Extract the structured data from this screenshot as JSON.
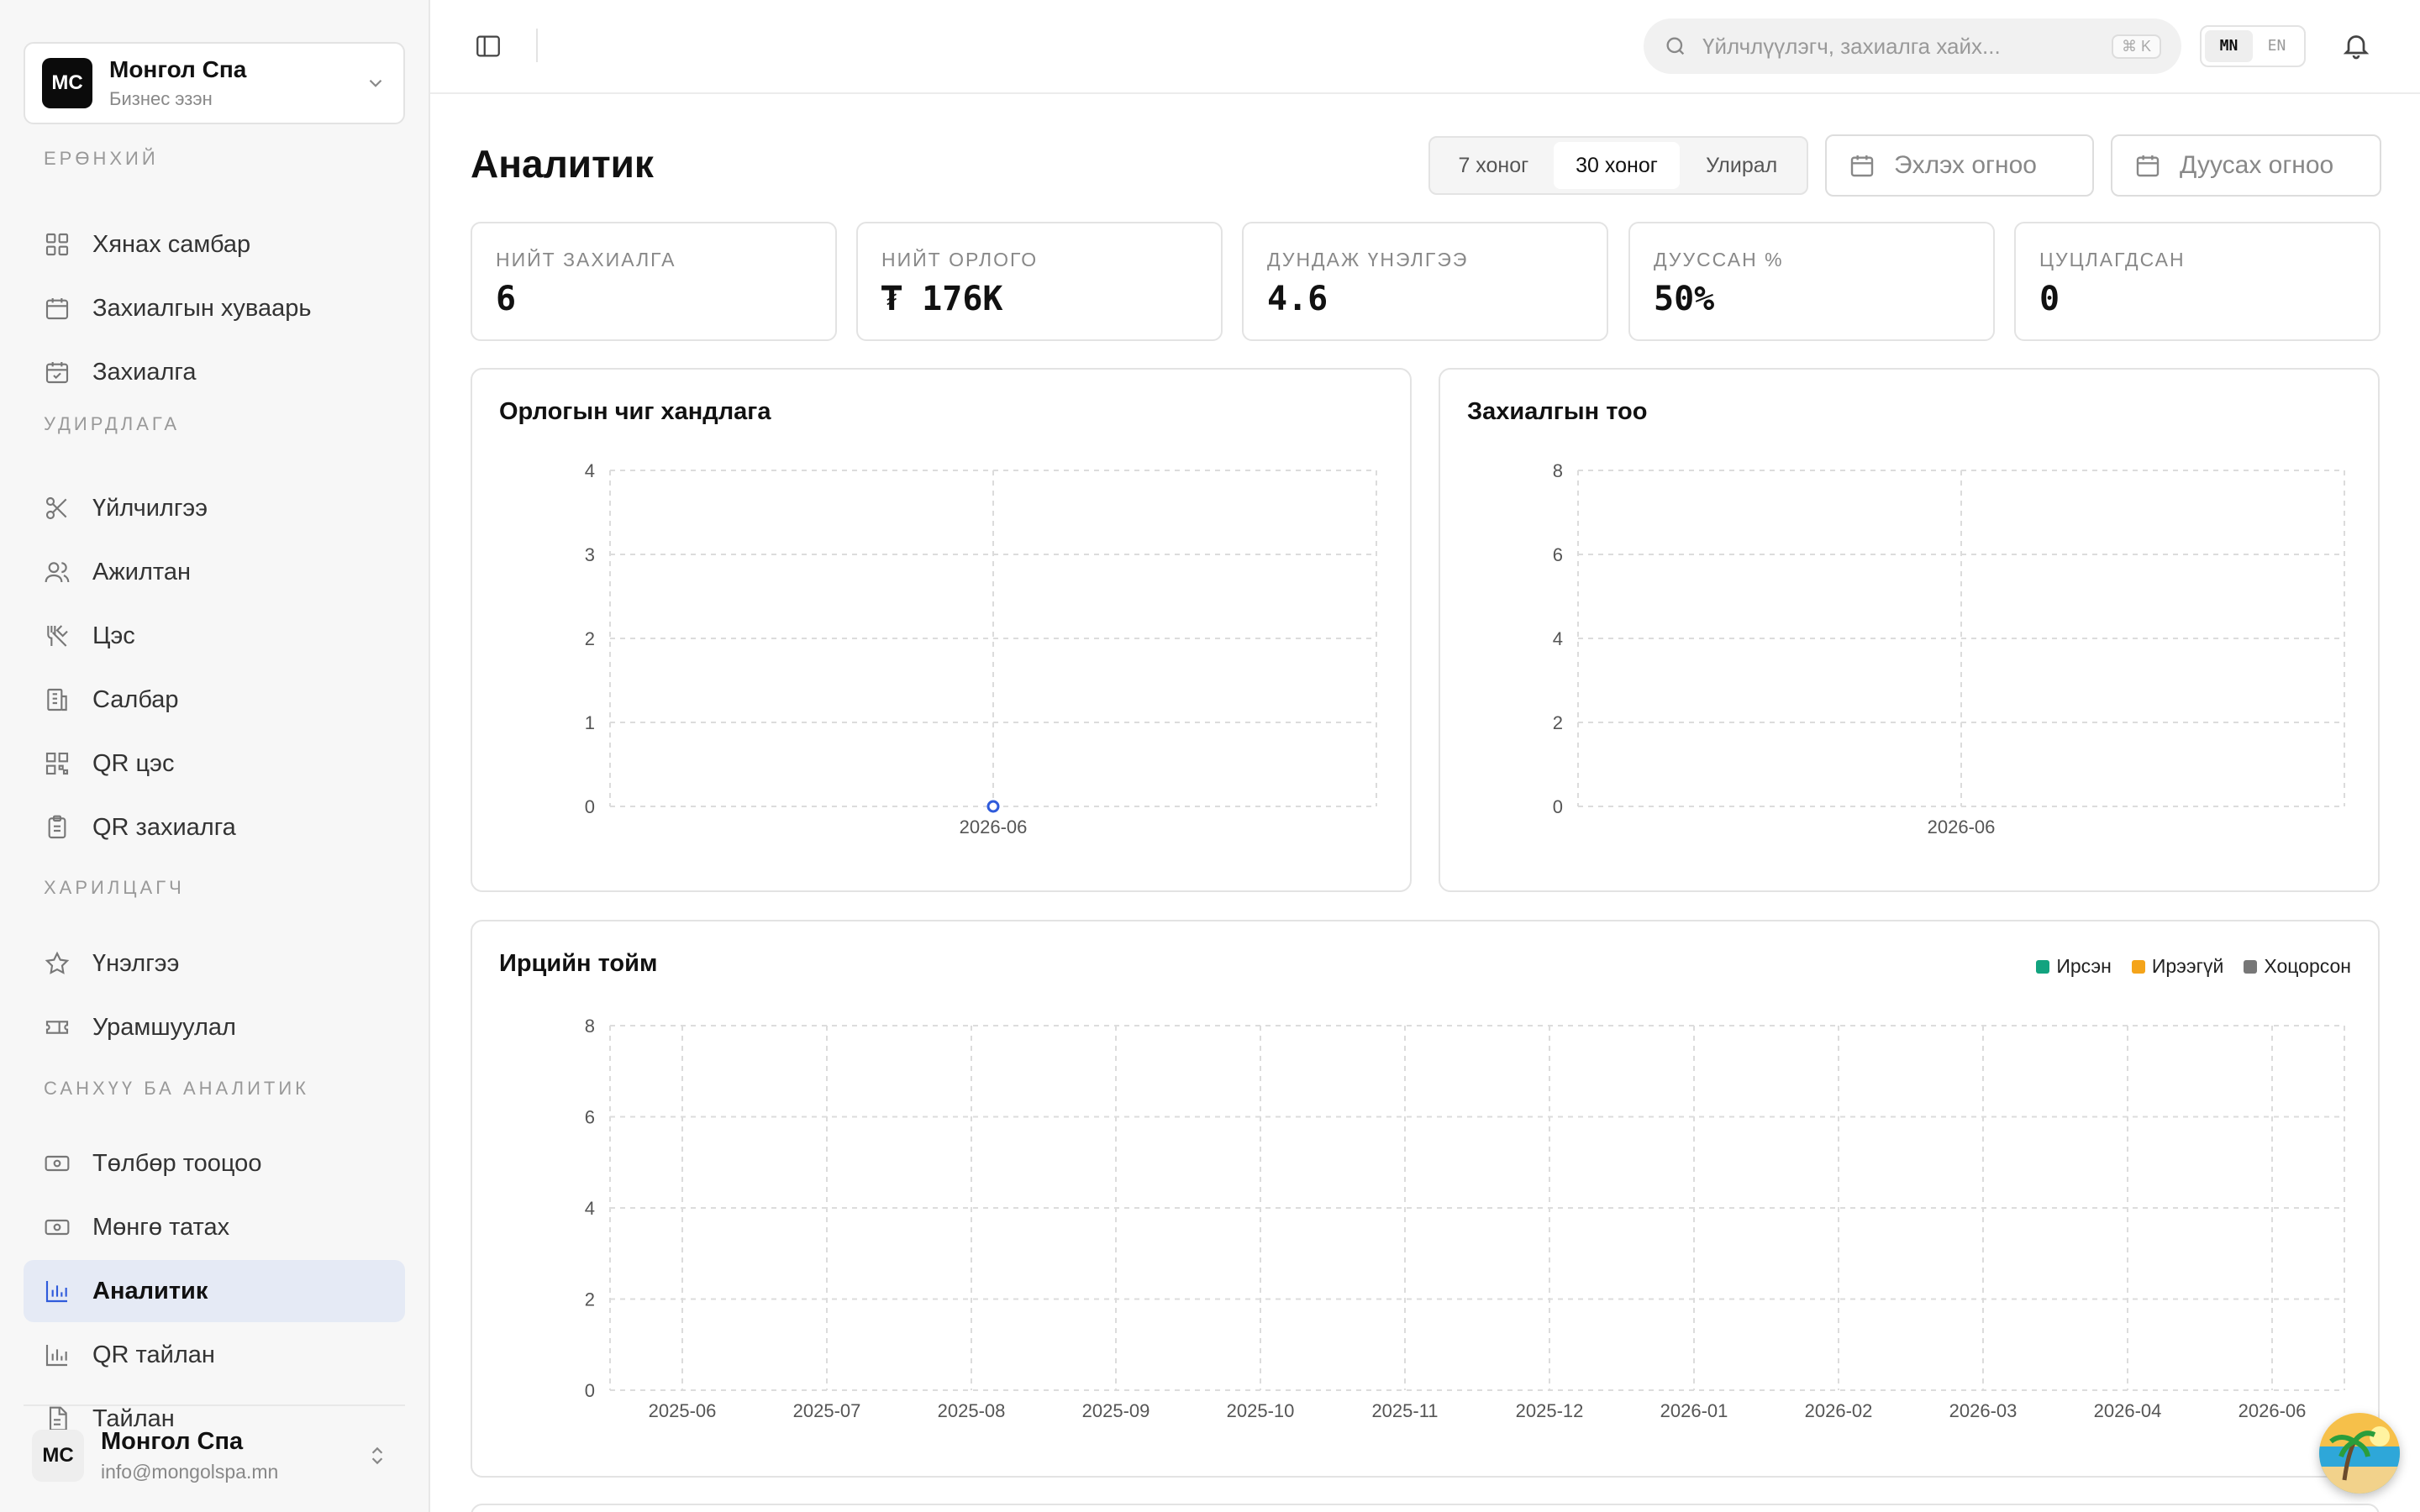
{
  "business": {
    "initials": "MC",
    "name": "Монгол Спа",
    "role": "Бизнес эзэн"
  },
  "sidebar": {
    "sections": [
      {
        "title": "Ерөнхий",
        "items": [
          {
            "label": "Хянах самбар",
            "icon": "dashboard-icon"
          },
          {
            "label": "Захиалгын хуваарь",
            "icon": "calendar-icon"
          },
          {
            "label": "Захиалга",
            "icon": "calendar-check-icon"
          }
        ]
      },
      {
        "title": "Удирдлага",
        "items": [
          {
            "label": "Үйлчилгээ",
            "icon": "scissors-icon"
          },
          {
            "label": "Ажилтан",
            "icon": "users-icon"
          },
          {
            "label": "Цэс",
            "icon": "utensils-icon"
          },
          {
            "label": "Салбар",
            "icon": "building-icon"
          },
          {
            "label": "QR цэс",
            "icon": "qr-icon"
          },
          {
            "label": "QR захиалга",
            "icon": "clipboard-icon"
          }
        ]
      },
      {
        "title": "Харилцагч",
        "items": [
          {
            "label": "Үнэлгээ",
            "icon": "star-icon"
          },
          {
            "label": "Урамшуулал",
            "icon": "ticket-icon"
          }
        ]
      },
      {
        "title": "Санхүү ба аналитик",
        "items": [
          {
            "label": "Төлбөр тооцоо",
            "icon": "banknote-icon"
          },
          {
            "label": "Мөнгө татах",
            "icon": "banknote-icon"
          },
          {
            "label": "Аналитик",
            "icon": "bar-chart-icon",
            "active": true
          },
          {
            "label": "QR тайлан",
            "icon": "bar-chart-icon"
          },
          {
            "label": "Тайлан",
            "icon": "file-icon"
          }
        ]
      }
    ]
  },
  "footer": {
    "initials": "MC",
    "name": "Монгол Спа",
    "email": "info@mongolspa.mn"
  },
  "topbar": {
    "search_placeholder": "Үйлчлүүлэгч, захиалга хайх...",
    "shortcut": "⌘ K",
    "lang": [
      "MN",
      "EN"
    ],
    "lang_active": "MN"
  },
  "page": {
    "title": "Аналитик",
    "ranges": [
      "7 хоног",
      "30 хоног",
      "Улирал"
    ],
    "range_active": "30 хоног",
    "start_date": "Эхлэх огноо",
    "end_date": "Дуусах огноо"
  },
  "stats": [
    {
      "label": "НИЙТ ЗАХИАЛГА",
      "value": "6"
    },
    {
      "label": "НИЙТ ОРЛОГО",
      "value": "₮ 176K"
    },
    {
      "label": "ДУНДАЖ ҮНЭЛГЭЭ",
      "value": "4.6"
    },
    {
      "label": "ДУУССАН %",
      "value": "50%"
    },
    {
      "label": "ЦУЦЛАГДСАН",
      "value": "0"
    }
  ],
  "colors": {
    "accent": "#2f5bdb",
    "arrived": "#12a37f",
    "noshow": "#f4a41a",
    "late": "#777777",
    "active_nav_bg": "#e5eaf5"
  },
  "chart_data": [
    {
      "type": "line",
      "title": "Орлогын чиг хандлага",
      "x": [
        "2026-06"
      ],
      "series": [
        {
          "values": [
            0
          ]
        }
      ],
      "ylim": [
        0,
        4
      ],
      "yticks": [
        0,
        1,
        2,
        3,
        4
      ],
      "grid": true
    },
    {
      "type": "bar",
      "title": "Захиалгын тоо",
      "categories": [
        "2026-06"
      ],
      "series": [
        {
          "values": [
            0
          ]
        }
      ],
      "ylim": [
        0,
        8
      ],
      "yticks": [
        0,
        2,
        4,
        6,
        8
      ],
      "grid": true
    },
    {
      "type": "bar",
      "title": "Ирцийн тойм",
      "categories": [
        "2025-06",
        "2025-07",
        "2025-08",
        "2025-09",
        "2025-10",
        "2025-11",
        "2025-12",
        "2026-01",
        "2026-02",
        "2026-03",
        "2026-04",
        "2026-06"
      ],
      "series": [
        {
          "name": "Ирсэн",
          "values": [
            0,
            0,
            0,
            0,
            0,
            0,
            0,
            0,
            0,
            0,
            0,
            0
          ]
        },
        {
          "name": "Ирээгүй",
          "values": [
            0,
            0,
            0,
            0,
            0,
            0,
            0,
            0,
            0,
            0,
            0,
            0
          ]
        },
        {
          "name": "Хоцорсон",
          "values": [
            0,
            0,
            0,
            0,
            0,
            0,
            0,
            0,
            0,
            0,
            0,
            0
          ]
        }
      ],
      "ylim": [
        0,
        8
      ],
      "yticks": [
        0,
        2,
        4,
        6,
        8
      ],
      "grid": true,
      "legend": "top-right"
    }
  ]
}
